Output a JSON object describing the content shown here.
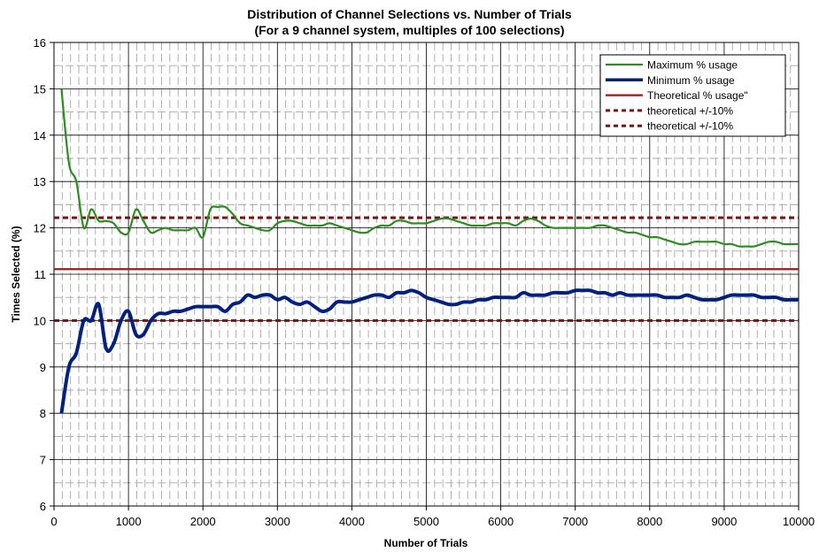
{
  "chart_data": {
    "type": "line",
    "title": "Distribution of Channel Selections vs. Number of Trials",
    "subtitle": "(For a 9 channel system, multiples of 100 selections)",
    "xlabel": "Number of Trials",
    "ylabel": "Times Selected (%)",
    "xlim": [
      0,
      10000
    ],
    "ylim": [
      6,
      16
    ],
    "x_ticks": [
      "0",
      "1000",
      "2000",
      "3000",
      "4000",
      "5000",
      "6000",
      "7000",
      "8000",
      "9000",
      "10000"
    ],
    "y_ticks": [
      "6",
      "7",
      "8",
      "9",
      "10",
      "11",
      "12",
      "13",
      "14",
      "15",
      "16"
    ],
    "grid": true,
    "legend_position": "top-right",
    "series": [
      {
        "name": "Maximum % usage",
        "color": "#2e8b22",
        "style": "solid-thin",
        "x": [
          100,
          200,
          300,
          400,
          500,
          600,
          700,
          800,
          900,
          1000,
          1100,
          1200,
          1300,
          1400,
          1500,
          1600,
          1700,
          1800,
          1900,
          2000,
          2100,
          2200,
          2300,
          2400,
          2500,
          2600,
          2700,
          2800,
          2900,
          3000,
          3100,
          3200,
          3300,
          3400,
          3500,
          3600,
          3700,
          3800,
          3900,
          4000,
          4100,
          4200,
          4300,
          4400,
          4500,
          4600,
          4700,
          4800,
          4900,
          5000,
          5100,
          5200,
          5300,
          5400,
          5500,
          5600,
          5700,
          5800,
          5900,
          6000,
          6100,
          6200,
          6300,
          6400,
          6500,
          6600,
          6700,
          6800,
          6900,
          7000,
          7100,
          7200,
          7300,
          7400,
          7500,
          7600,
          7700,
          7800,
          7900,
          8000,
          8100,
          8200,
          8300,
          8400,
          8500,
          8600,
          8700,
          8800,
          8900,
          9000,
          9100,
          9200,
          9300,
          9400,
          9500,
          9600,
          9700,
          9800,
          9900,
          10000
        ],
        "values": [
          15.0,
          13.4,
          13.0,
          12.0,
          12.4,
          12.15,
          12.15,
          12.1,
          11.9,
          11.9,
          12.4,
          12.15,
          11.9,
          11.95,
          12.0,
          11.95,
          11.95,
          11.95,
          12.0,
          11.8,
          12.4,
          12.45,
          12.45,
          12.3,
          12.1,
          12.05,
          12.0,
          11.95,
          11.95,
          12.1,
          12.15,
          12.15,
          12.1,
          12.05,
          12.05,
          12.05,
          12.1,
          12.05,
          12.0,
          11.95,
          11.9,
          11.9,
          12.0,
          12.05,
          12.05,
          12.15,
          12.15,
          12.1,
          12.1,
          12.1,
          12.15,
          12.2,
          12.2,
          12.15,
          12.1,
          12.05,
          12.05,
          12.05,
          12.1,
          12.1,
          12.1,
          12.05,
          12.15,
          12.2,
          12.15,
          12.05,
          12.0,
          12.0,
          12.0,
          12.0,
          12.0,
          12.0,
          12.05,
          12.05,
          12.0,
          11.95,
          11.9,
          11.9,
          11.85,
          11.8,
          11.8,
          11.75,
          11.7,
          11.65,
          11.65,
          11.7,
          11.7,
          11.7,
          11.7,
          11.65,
          11.65,
          11.6,
          11.6,
          11.6,
          11.65,
          11.7,
          11.7,
          11.65,
          11.65,
          11.65
        ]
      },
      {
        "name": "Minimum % usage",
        "color": "#00207f",
        "style": "solid-thick",
        "x": [
          100,
          200,
          300,
          400,
          500,
          600,
          700,
          800,
          900,
          1000,
          1100,
          1200,
          1300,
          1400,
          1500,
          1600,
          1700,
          1800,
          1900,
          2000,
          2100,
          2200,
          2300,
          2400,
          2500,
          2600,
          2700,
          2800,
          2900,
          3000,
          3100,
          3200,
          3300,
          3400,
          3500,
          3600,
          3700,
          3800,
          3900,
          4000,
          4100,
          4200,
          4300,
          4400,
          4500,
          4600,
          4700,
          4800,
          4900,
          5000,
          5100,
          5200,
          5300,
          5400,
          5500,
          5600,
          5700,
          5800,
          5900,
          6000,
          6100,
          6200,
          6300,
          6400,
          6500,
          6600,
          6700,
          6800,
          6900,
          7000,
          7100,
          7200,
          7300,
          7400,
          7500,
          7600,
          7700,
          7800,
          7900,
          8000,
          8100,
          8200,
          8300,
          8400,
          8500,
          8600,
          8700,
          8800,
          8900,
          9000,
          9100,
          9200,
          9300,
          9400,
          9500,
          9600,
          9700,
          9800,
          9900,
          10000
        ],
        "values": [
          8.0,
          9.0,
          9.3,
          10.0,
          10.0,
          10.35,
          9.4,
          9.5,
          10.0,
          10.2,
          9.7,
          9.7,
          10.0,
          10.15,
          10.15,
          10.2,
          10.2,
          10.25,
          10.3,
          10.3,
          10.3,
          10.3,
          10.2,
          10.35,
          10.4,
          10.55,
          10.5,
          10.55,
          10.55,
          10.45,
          10.5,
          10.4,
          10.35,
          10.4,
          10.3,
          10.2,
          10.25,
          10.4,
          10.4,
          10.4,
          10.45,
          10.5,
          10.55,
          10.55,
          10.5,
          10.6,
          10.6,
          10.65,
          10.6,
          10.5,
          10.45,
          10.4,
          10.35,
          10.35,
          10.4,
          10.4,
          10.45,
          10.45,
          10.5,
          10.5,
          10.5,
          10.5,
          10.6,
          10.55,
          10.55,
          10.55,
          10.6,
          10.6,
          10.6,
          10.65,
          10.65,
          10.65,
          10.6,
          10.6,
          10.55,
          10.6,
          10.55,
          10.55,
          10.55,
          10.55,
          10.55,
          10.5,
          10.5,
          10.5,
          10.55,
          10.5,
          10.45,
          10.45,
          10.45,
          10.5,
          10.55,
          10.55,
          10.55,
          10.55,
          10.5,
          10.5,
          10.5,
          10.45,
          10.45,
          10.45
        ]
      },
      {
        "name": "Theoretical % usage\"",
        "color": "#a01818",
        "style": "solid-medium",
        "x": [
          0,
          10000
        ],
        "values": [
          11.11,
          11.11
        ]
      },
      {
        "name": "theoretical +/-10%",
        "color": "#7f1010",
        "style": "dashed",
        "x": [
          0,
          10000
        ],
        "values": [
          12.22,
          12.22
        ]
      },
      {
        "name": "theoretical +/-10%",
        "color": "#7f1010",
        "style": "dashed",
        "x": [
          0,
          10000
        ],
        "values": [
          10.0,
          10.0
        ]
      }
    ]
  }
}
